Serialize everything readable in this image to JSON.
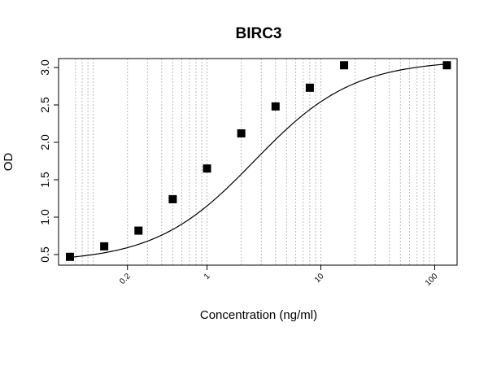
{
  "chart_data": {
    "type": "scatter",
    "title": "BIRC3",
    "xlabel": "Concentration (ng/ml)",
    "ylabel": "OD",
    "x_scale": "log",
    "xlim": [
      0.0625,
      125
    ],
    "ylim": [
      0.5,
      3.0
    ],
    "x_ticks": [
      0.2,
      1,
      10,
      100
    ],
    "x_tick_labels": [
      "0.2",
      "1",
      "10",
      "100"
    ],
    "y_ticks": [
      0.5,
      1.0,
      1.5,
      2.0,
      2.5,
      3.0
    ],
    "y_tick_labels": [
      "0.5",
      "1.0",
      "1.5",
      "2.0",
      "2.5",
      "3.0"
    ],
    "grid": "vertical dashed gridlines at log minor ticks",
    "marker": "filled square",
    "series": [
      {
        "x": [
          0.0625,
          0.125,
          0.25,
          0.5,
          1,
          2,
          4,
          8,
          16,
          128
        ],
        "y": [
          0.47,
          0.61,
          0.82,
          1.24,
          1.65,
          2.12,
          2.48,
          2.73,
          3.03,
          3.03
        ]
      }
    ],
    "fitted_curve": "smooth sigmoidal fit through the points"
  }
}
